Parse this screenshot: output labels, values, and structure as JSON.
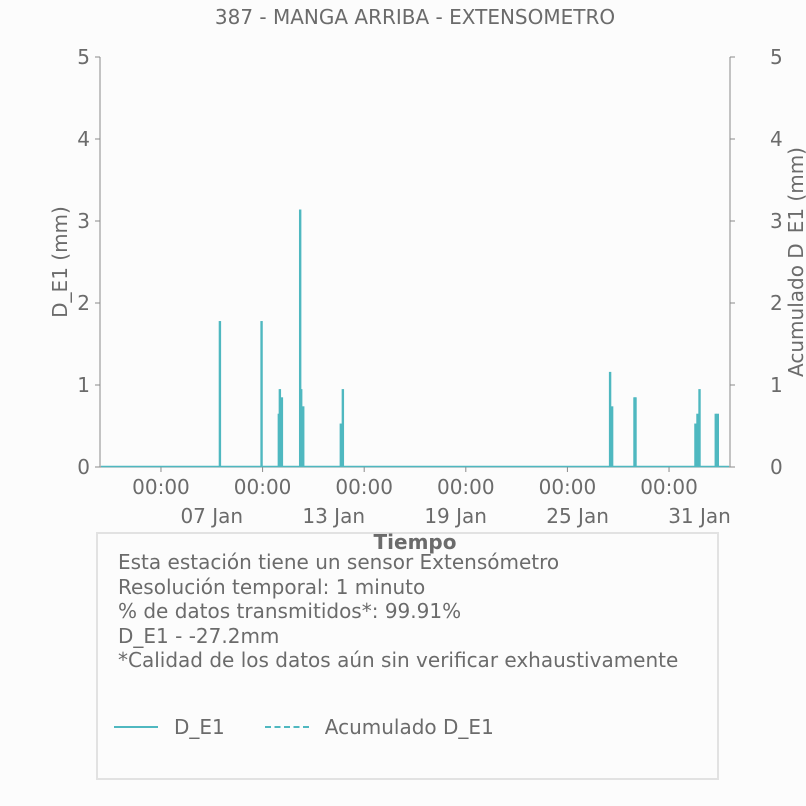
{
  "chart_data": {
    "type": "bar",
    "title": "387 - MANGA ARRIBA - EXTENSOMETRO",
    "xlabel": "Tiempo",
    "ylabel": "D_E1 (mm)",
    "y2label": "Acumulado D_E1 (mm)",
    "ylim": [
      0,
      5
    ],
    "y2lim": [
      0,
      5
    ],
    "yticks": [
      "0",
      "1",
      "2",
      "3",
      "4",
      "5"
    ],
    "x_range_days": [
      1.0,
      32.0
    ],
    "xticks_time": [
      {
        "day": 4.0,
        "label": "00:00"
      },
      {
        "day": 9.0,
        "label": "00:00"
      },
      {
        "day": 14.0,
        "label": "00:00"
      },
      {
        "day": 19.0,
        "label": "00:00"
      },
      {
        "day": 24.0,
        "label": "00:00"
      },
      {
        "day": 29.0,
        "label": "00:00"
      }
    ],
    "xticks_date": [
      {
        "day": 6.5,
        "label": "07 Jan"
      },
      {
        "day": 12.5,
        "label": "13 Jan"
      },
      {
        "day": 18.5,
        "label": "19 Jan"
      },
      {
        "day": 24.5,
        "label": "25 Jan"
      },
      {
        "day": 30.5,
        "label": "31 Jan"
      }
    ],
    "series": [
      {
        "name": "D_E1",
        "style": "solid",
        "color": "#4fb8c0",
        "points": [
          {
            "day": 6.9,
            "value": 1.78
          },
          {
            "day": 8.95,
            "value": 1.78
          },
          {
            "day": 9.8,
            "value": 0.65
          },
          {
            "day": 9.85,
            "value": 0.95
          },
          {
            "day": 9.95,
            "value": 0.85
          },
          {
            "day": 10.85,
            "value": 3.14
          },
          {
            "day": 10.9,
            "value": 0.95
          },
          {
            "day": 11.0,
            "value": 0.74
          },
          {
            "day": 12.85,
            "value": 0.53
          },
          {
            "day": 12.95,
            "value": 0.95
          },
          {
            "day": 26.1,
            "value": 1.16
          },
          {
            "day": 26.2,
            "value": 0.74
          },
          {
            "day": 27.3,
            "value": 0.85
          },
          {
            "day": 27.35,
            "value": 0.85
          },
          {
            "day": 30.3,
            "value": 0.53
          },
          {
            "day": 30.4,
            "value": 0.65
          },
          {
            "day": 30.5,
            "value": 0.95
          },
          {
            "day": 31.3,
            "value": 0.65
          },
          {
            "day": 31.4,
            "value": 0.65
          }
        ]
      },
      {
        "name": "Acumulado D_E1",
        "style": "dashed",
        "color": "#4fb8c0",
        "points": []
      }
    ]
  },
  "info": {
    "lines": [
      "Esta estación tiene un sensor Extensómetro",
      "Resolución temporal: 1 minuto",
      "% de datos transmitidos*: 99.91%",
      "D_E1 - -27.2mm",
      "*Calidad de los datos aún sin verificar exhaustivamente"
    ]
  },
  "legend": {
    "items": [
      {
        "label": "D_E1",
        "style": "solid"
      },
      {
        "label": "Acumulado D_E1",
        "style": "dashed"
      }
    ]
  },
  "colors": {
    "series": "#4fb8c0",
    "text": "#6b6b6b",
    "axis": "#8a8a8a"
  }
}
